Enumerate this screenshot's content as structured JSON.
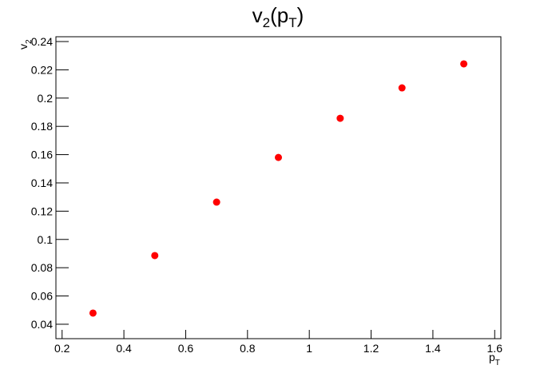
{
  "chart_data": {
    "type": "scatter",
    "title_parts": [
      "v",
      "2",
      "(p",
      "T",
      ")"
    ],
    "x_label_parts": [
      "p",
      "T"
    ],
    "y_label_parts": [
      "v",
      "2"
    ],
    "series": [
      {
        "color": "#ff0000",
        "x": [
          0.3,
          0.5,
          0.7,
          0.9,
          1.1,
          1.3,
          1.5
        ],
        "values": [
          0.0479,
          0.0886,
          0.1264,
          0.158,
          0.1857,
          0.2072,
          0.2242
        ]
      }
    ],
    "xlim": [
      0.18,
      1.62
    ],
    "xticks": [
      0.2,
      0.4,
      0.6,
      0.8,
      1,
      1.2,
      1.4,
      1.6
    ],
    "ylim": [
      0.0298,
      0.2434
    ],
    "yticks": [
      0.04,
      0.06,
      0.08,
      0.1,
      0.12,
      0.14,
      0.16,
      0.18,
      0.2,
      0.22,
      0.24
    ]
  }
}
